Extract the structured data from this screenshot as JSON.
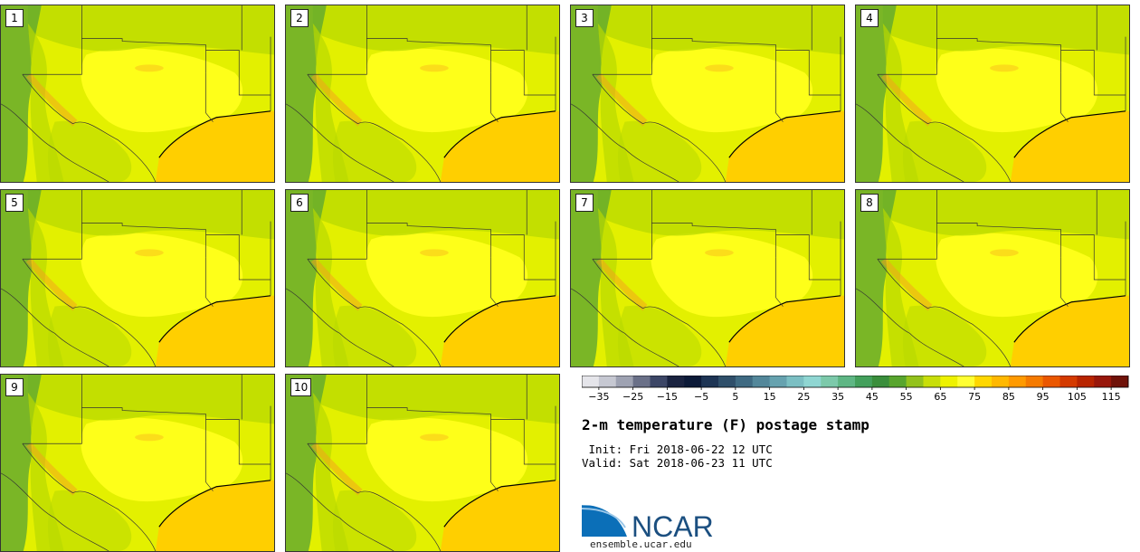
{
  "panels": [
    "1",
    "2",
    "3",
    "4",
    "5",
    "6",
    "7",
    "8",
    "9",
    "10"
  ],
  "map_layers": {
    "land_color": "#e3f000",
    "warm_color": "#ffff1a",
    "green_color": "#b8d900",
    "dark_green_color": "#5fa830",
    "gulf_color": "#ffcf00",
    "hot_color": "#f59d1e",
    "border_color": "#333333"
  },
  "colorbar": {
    "tick_labels": [
      "−35",
      "−25",
      "−15",
      "−5",
      "5",
      "15",
      "25",
      "35",
      "45",
      "55",
      "65",
      "75",
      "85",
      "95",
      "105",
      "115"
    ],
    "colors": [
      "#e5e5ea",
      "#c6c8d2",
      "#9ea2b2",
      "#6a7088",
      "#3c4666",
      "#1a2340",
      "#0c1a38",
      "#1d3454",
      "#2f4f6a",
      "#3f6a82",
      "#53879a",
      "#66a2af",
      "#7bbfc3",
      "#8fd6d2",
      "#7cc9aa",
      "#5eb684",
      "#43a05c",
      "#3a8e3c",
      "#58a52e",
      "#93c21c",
      "#c8de0a",
      "#eef200",
      "#ffff33",
      "#ffd700",
      "#ffb800",
      "#ff9a00",
      "#f57a00",
      "#ea5700",
      "#d43a00",
      "#b82400",
      "#98170b",
      "#6f1209"
    ]
  },
  "title": "2-m temperature (F) postage stamp",
  "init_line": " Init: Fri 2018-06-22 12 UTC",
  "valid_line": "Valid: Sat 2018-06-23 11 UTC",
  "logo": {
    "name": "NCAR",
    "url": "ensemble.ucar.edu"
  }
}
